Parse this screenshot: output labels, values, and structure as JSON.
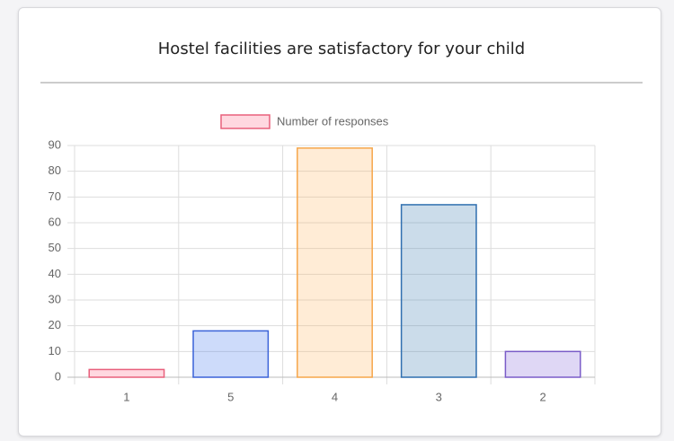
{
  "chart_data": {
    "type": "bar",
    "title": "Hostel facilities are satisfactory for your child",
    "categories": [
      "1",
      "5",
      "4",
      "3",
      "2"
    ],
    "series": [
      {
        "name": "Number of responses",
        "values": [
          3,
          18,
          89,
          67,
          10
        ],
        "colors": [
          "rgba(255,99,132,0.25)",
          "rgba(54,110,235,0.25)",
          "rgba(255,180,90,0.25)",
          "rgba(70,130,180,0.28)",
          "rgba(140,110,220,0.28)"
        ],
        "border_colors": [
          "#e8607c",
          "#3a62d8",
          "#f5a64a",
          "#2f6fb0",
          "#7a5cc8"
        ]
      }
    ],
    "ylim": [
      0,
      90
    ],
    "yticks": [
      0,
      10,
      20,
      30,
      40,
      50,
      60,
      70,
      80,
      90
    ],
    "grid": true,
    "legend": "top"
  }
}
